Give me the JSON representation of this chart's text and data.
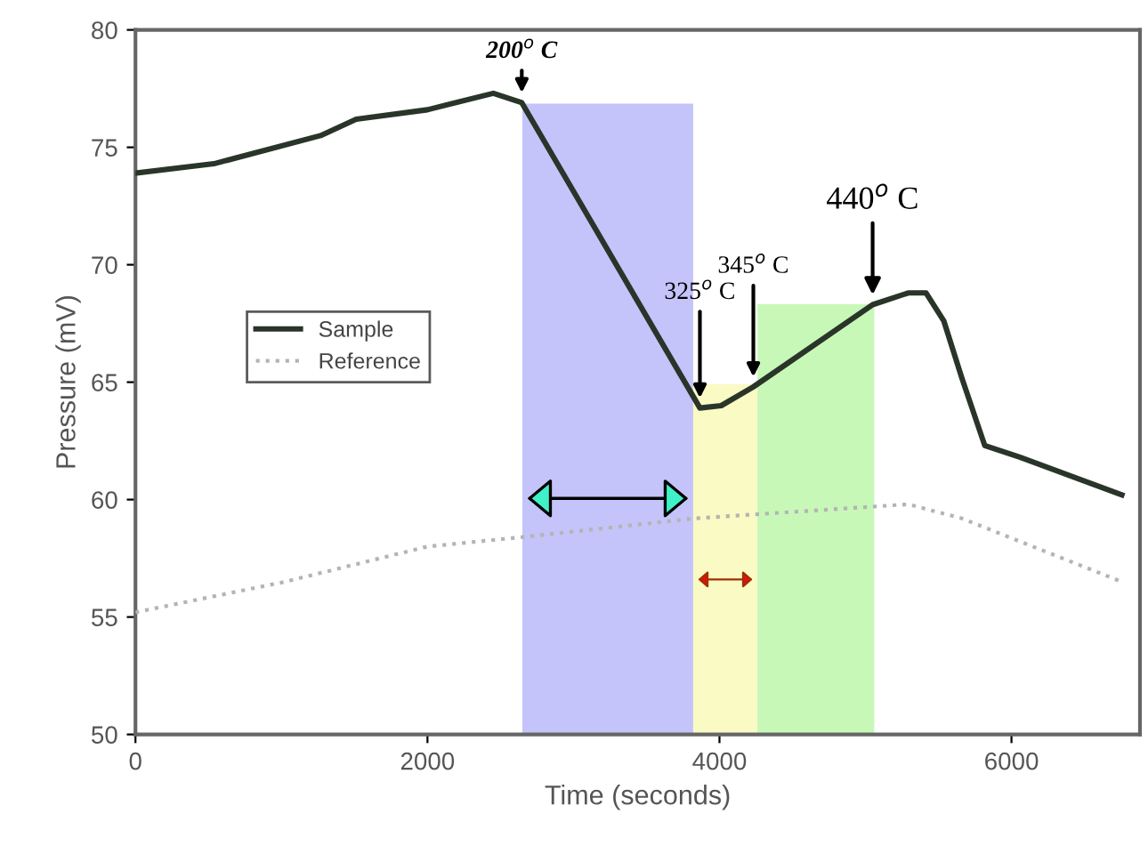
{
  "chart_data": {
    "type": "line",
    "xlabel": "Time (seconds)",
    "ylabel": "Pressure (mV)",
    "xlim": [
      0,
      6880
    ],
    "ylim": [
      50,
      80
    ],
    "xticks": [
      0,
      2000,
      4000,
      6000
    ],
    "yticks": [
      50,
      55,
      60,
      65,
      70,
      75,
      80
    ],
    "grid": false,
    "legend": "center left",
    "marker": "none",
    "series": [
      {
        "name": "Sample",
        "color": "#2a352a",
        "line_style": "solid",
        "x": [
          0,
          537,
          1268,
          1512,
          2000,
          2451,
          2646,
          3866,
          4012,
          4232,
          5049,
          5293,
          5415,
          5537,
          5659,
          5817,
          6061,
          6756
        ],
        "values": [
          73.9,
          74.3,
          75.5,
          76.2,
          76.6,
          77.3,
          76.9,
          63.9,
          64.0,
          64.8,
          68.3,
          68.8,
          68.8,
          67.6,
          65.2,
          62.3,
          61.8,
          60.2
        ]
      },
      {
        "name": "Reference",
        "color": "#b4b4b4",
        "line_style": "dotted",
        "x": [
          0,
          1024,
          2000,
          2646,
          3829,
          5049,
          5293,
          5659,
          6756
        ],
        "values": [
          55.2,
          56.5,
          58.0,
          58.4,
          59.2,
          59.7,
          59.8,
          59.2,
          56.5
        ]
      }
    ],
    "bands": [
      {
        "axis": "x",
        "from": 2650,
        "to": 3820,
        "color": "#c4c4fa"
      },
      {
        "axis": "x",
        "from": 3820,
        "to": 4260,
        "color": "#fafac4"
      },
      {
        "axis": "x",
        "from": 4260,
        "to": 5060,
        "color": "#c8f8b8"
      }
    ],
    "annotations": [
      {
        "text": "200$^{o}$ C",
        "x": 2646,
        "y": 76.9
      },
      {
        "text": "325$^{o}$ C",
        "x": 3866,
        "y": 63.9
      },
      {
        "text": "345$^{o}$ C",
        "x": 4232,
        "y": 64.8
      },
      {
        "text": "440$^{o}$ C",
        "x": 5049,
        "y": 68.3
      }
    ]
  }
}
